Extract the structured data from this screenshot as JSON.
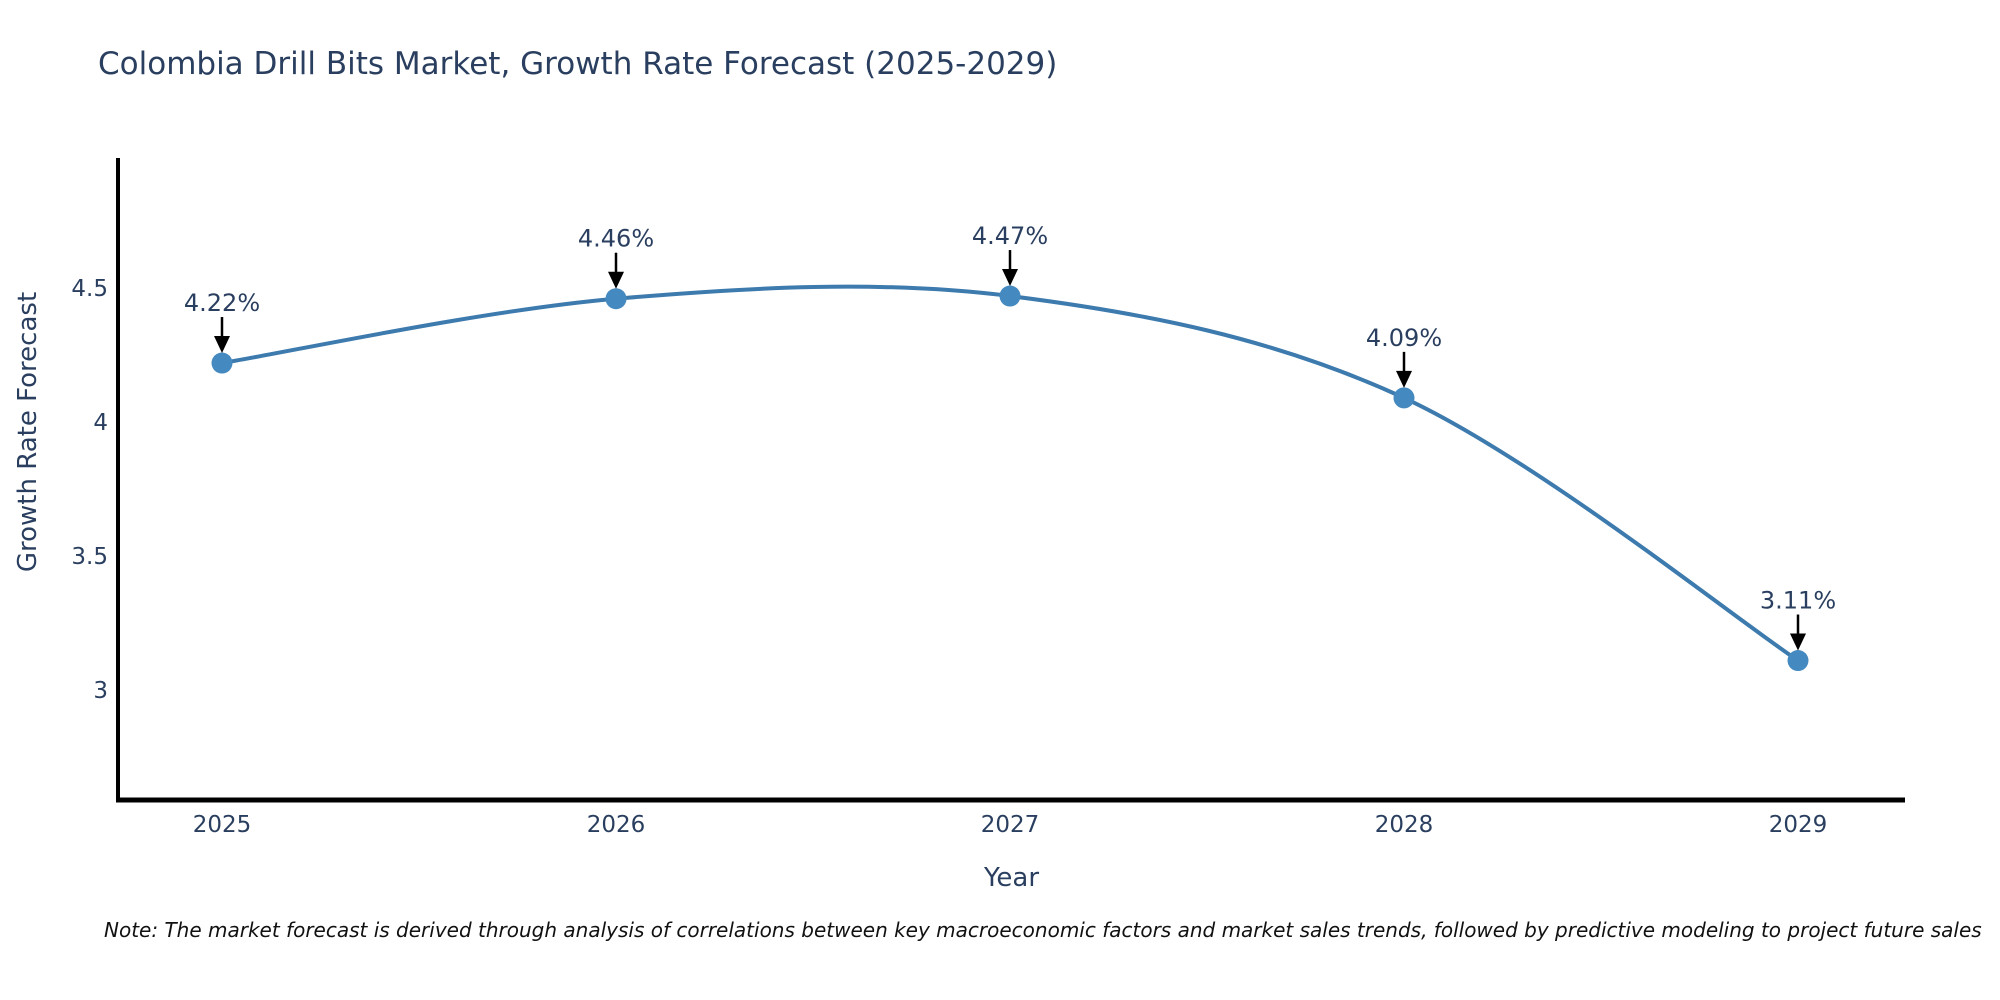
{
  "title": "Colombia Drill Bits Market, Growth Rate Forecast (2025-2029)",
  "note": "Note: The market forecast is derived through analysis of correlations between key macroeconomic factors and market sales trends, followed by predictive modeling to project future sales",
  "chart_data": {
    "type": "line",
    "title": "Colombia Drill Bits Market, Growth Rate Forecast (2025-2029)",
    "xlabel": "Year",
    "ylabel": "Growth Rate Forecast",
    "categories": [
      2025,
      2026,
      2027,
      2028,
      2029
    ],
    "values": [
      4.22,
      4.46,
      4.47,
      4.09,
      3.11
    ],
    "point_labels": [
      "4.22%",
      "4.46%",
      "4.47%",
      "4.09%",
      "3.11%"
    ],
    "yticks": [
      3,
      3.5,
      4,
      4.5
    ],
    "ytick_labels": [
      "3",
      "3.5",
      "4",
      "4.5"
    ],
    "ylim": [
      2.57,
      4.98
    ],
    "xlim": [
      2024.74,
      2029.27
    ],
    "grid": false,
    "legend_position": "none",
    "line_shape": "spline",
    "annotations": "value labels with black arrows pointing down at each marker",
    "colors": {
      "line": "#3d7aad",
      "marker": "#4489c0",
      "annotation_text": "#2a3f5f",
      "tick_text": "#2a3f5f",
      "axis_title_text": "#2a3f5f",
      "title_text": "#2a3f5f",
      "axis_line": "#000000",
      "arrow": "#000000",
      "background": "#ffffff"
    }
  }
}
